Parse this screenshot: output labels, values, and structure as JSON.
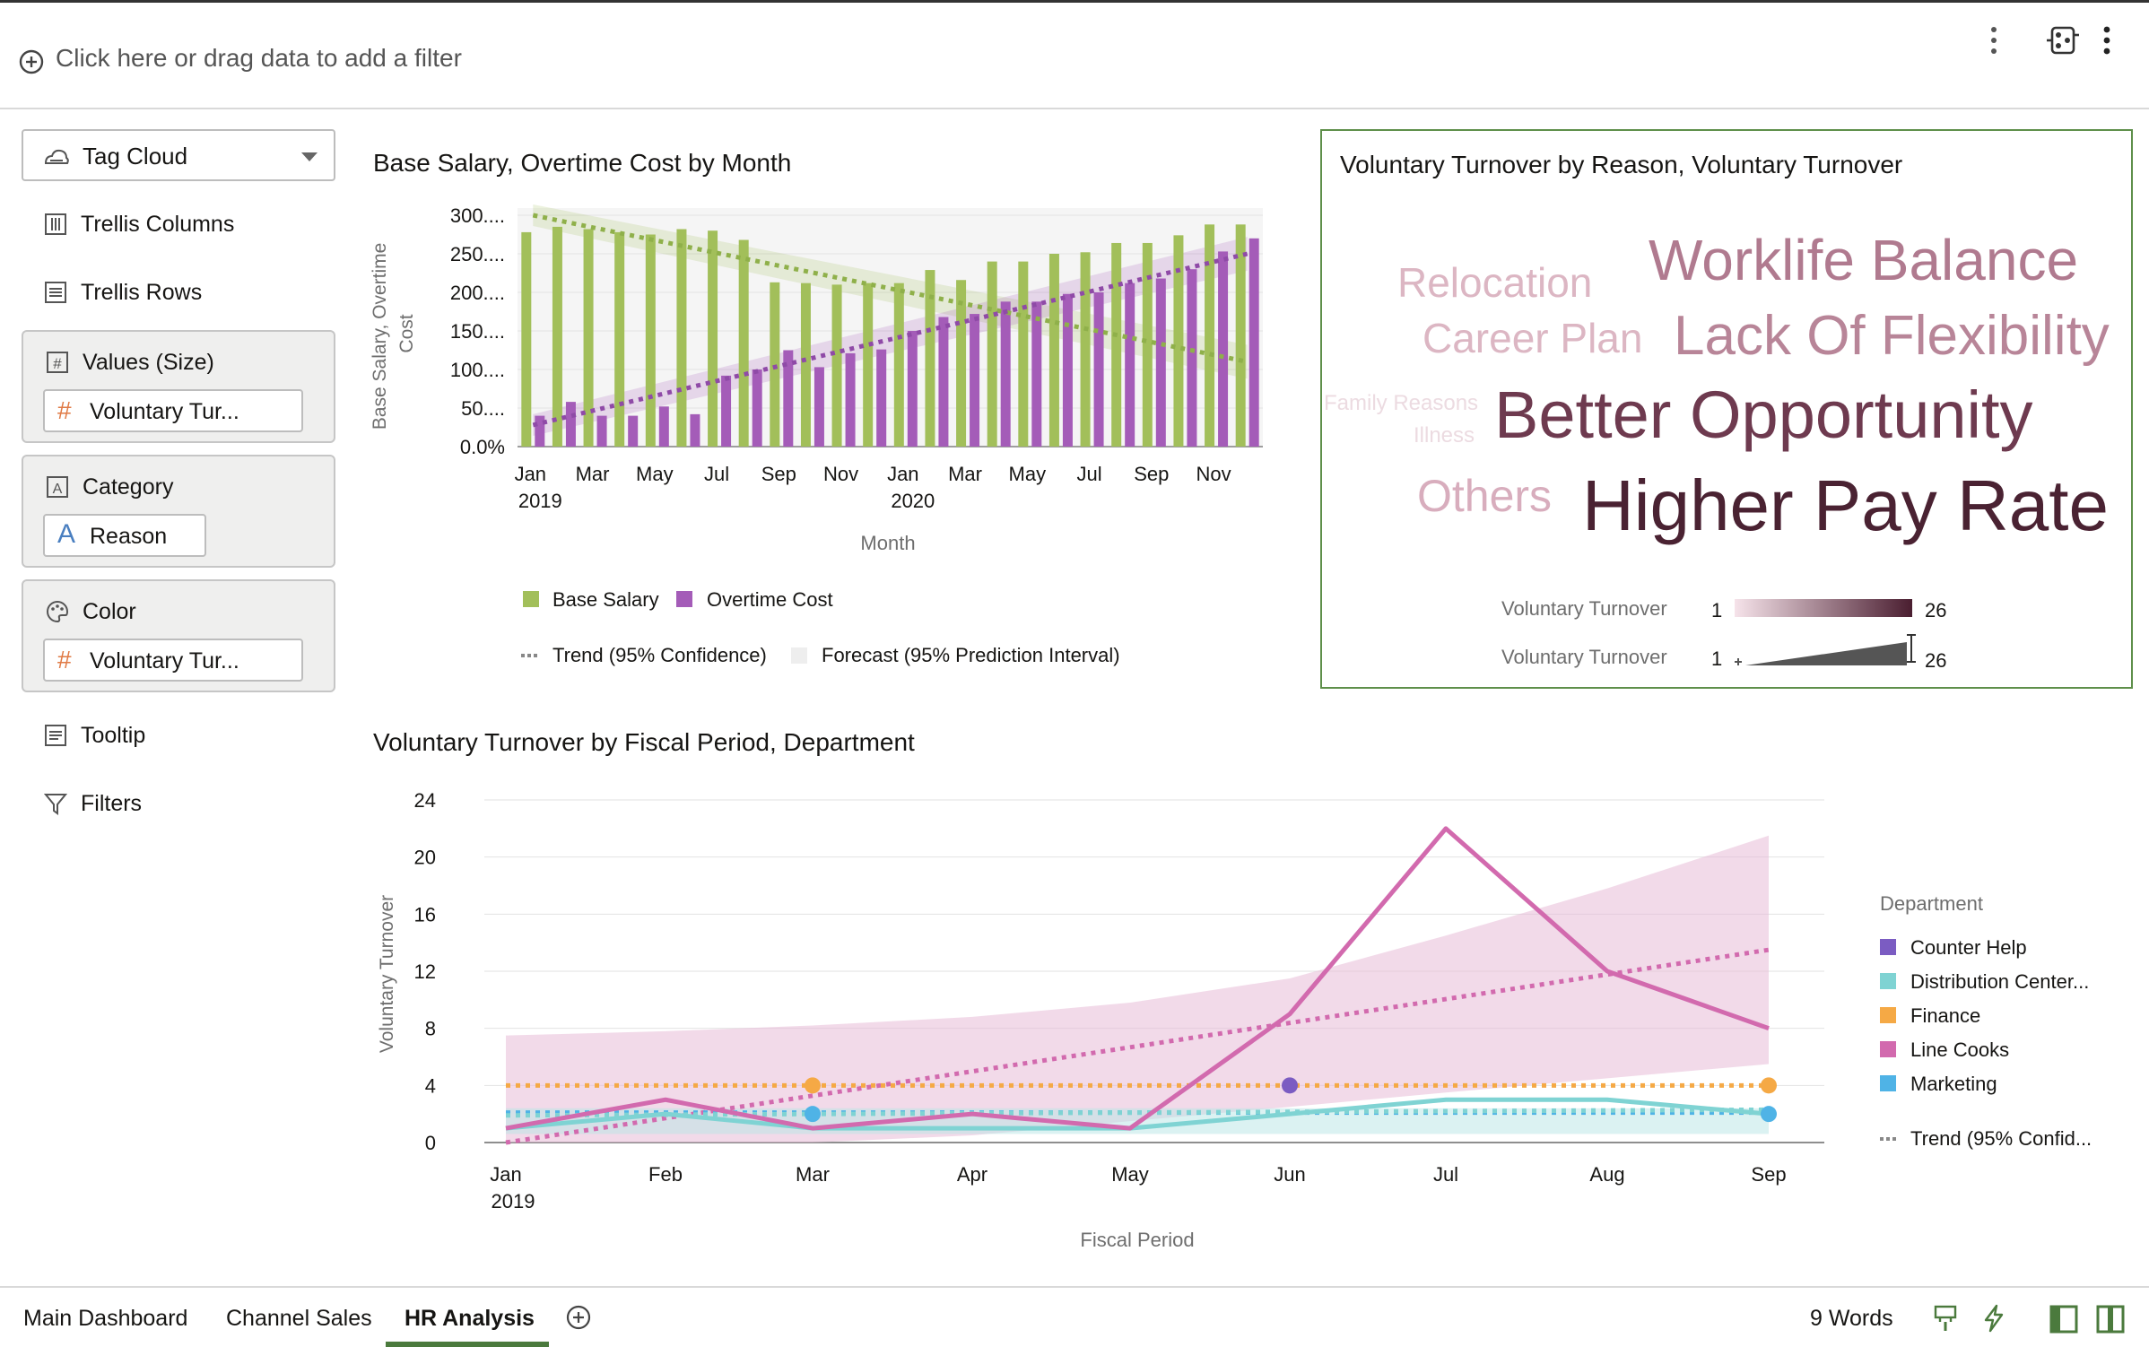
{
  "filter_bar": {
    "hint": "Click here or drag data to add a filter"
  },
  "left_panel": {
    "viz_type": "Tag Cloud",
    "trellis_columns": "Trellis Columns",
    "trellis_rows": "Trellis Rows",
    "values_label": "Values (Size)",
    "values_chip": "Voluntary Tur...",
    "category_label": "Category",
    "category_chip": "Reason",
    "color_label": "Color",
    "color_chip": "Voluntary Tur...",
    "tooltip": "Tooltip",
    "filters": "Filters"
  },
  "tag_cloud": {
    "title": "Voluntary Turnover by Reason, Voluntary Turnover",
    "words": [
      {
        "text": "Worklife Balance",
        "color": "#b07a8f"
      },
      {
        "text": "Relocation",
        "color": "#dcb6c3"
      },
      {
        "text": "Career Plan",
        "color": "#dcb6c3"
      },
      {
        "text": "Lack Of Flexibility",
        "color": "#b88598"
      },
      {
        "text": "Family Reasons",
        "color": "#ecdbe1"
      },
      {
        "text": "Illness",
        "color": "#ecdbe1"
      },
      {
        "text": "Better Opportunity",
        "color": "#6e3a4f"
      },
      {
        "text": "Others",
        "color": "#d8adbd"
      },
      {
        "text": "Higher Pay Rate",
        "color": "#4a2232"
      }
    ],
    "legend": {
      "color_label": "Voluntary Turnover",
      "color_min": "1",
      "color_max": "26",
      "size_label": "Voluntary Turnover",
      "size_min": "1",
      "size_max": "26"
    }
  },
  "bottom_tabs": [
    "Main Dashboard",
    "Channel Sales",
    "HR Analysis"
  ],
  "active_tab": "HR Analysis",
  "status": {
    "word_count": "9 Words"
  },
  "chart_data": [
    {
      "type": "bar",
      "title": "Base Salary, Overtime Cost by Month",
      "xlabel": "Month",
      "ylabel": "Base Salary, Overtime Cost",
      "x_tick_labels": [
        "Jan",
        "Mar",
        "May",
        "Jul",
        "Sep",
        "Nov",
        "Jan",
        "Mar",
        "May",
        "Jul",
        "Sep",
        "Nov"
      ],
      "x_tick_years": [
        "2019",
        "2020"
      ],
      "y_tick_labels": [
        "0.0%",
        "50....",
        "100....",
        "150....",
        "200....",
        "250....",
        "300...."
      ],
      "ylim": [
        0,
        300
      ],
      "categories": [
        "Jan 2019",
        "Feb 2019",
        "Mar 2019",
        "Apr 2019",
        "May 2019",
        "Jun 2019",
        "Jul 2019",
        "Aug 2019",
        "Sep 2019",
        "Oct 2019",
        "Nov 2019",
        "Dec 2019",
        "Jan 2020",
        "Feb 2020",
        "Mar 2020",
        "Apr 2020",
        "May 2020",
        "Jun 2020",
        "Jul 2020",
        "Aug 2020",
        "Sep 2020",
        "Oct 2020",
        "Nov 2020",
        "Dec 2020"
      ],
      "series": [
        {
          "name": "Base Salary",
          "color": "#a2bf5a",
          "values": [
            278,
            285,
            282,
            278,
            275,
            282,
            280,
            268,
            213,
            212,
            210,
            212,
            212,
            229,
            216,
            240,
            240,
            250,
            252,
            264,
            264,
            274,
            288,
            288
          ]
        },
        {
          "name": "Overtime Cost",
          "color": "#a45cb8",
          "values": [
            40,
            58,
            40,
            40,
            52,
            42,
            92,
            100,
            125,
            103,
            121,
            126,
            150,
            168,
            172,
            188,
            188,
            198,
            200,
            212,
            218,
            230,
            253,
            270
          ]
        }
      ],
      "legend": [
        "Base Salary",
        "Overtime Cost",
        "Trend (95% Confidence)",
        "Forecast (95% Prediction Interval)"
      ],
      "trend_lines": [
        {
          "series": "Base Salary",
          "start": 300,
          "end": 110
        },
        {
          "series": "Overtime Cost",
          "start": 28,
          "end": 250
        }
      ]
    },
    {
      "type": "line",
      "title": "Voluntary Turnover by Fiscal Period, Department",
      "xlabel": "Fiscal Period",
      "ylabel": "Voluntary Turnover",
      "categories": [
        "Jan",
        "Feb",
        "Mar",
        "Apr",
        "May",
        "Jun",
        "Jul",
        "Aug",
        "Sep"
      ],
      "x_tick_year": "2019",
      "y_ticks": [
        0,
        4,
        8,
        12,
        16,
        20,
        24
      ],
      "ylim": [
        0,
        24
      ],
      "legend_title": "Department",
      "series": [
        {
          "name": "Counter Help",
          "color": "#7b5cc2",
          "values": [
            null,
            null,
            null,
            null,
            null,
            4,
            null,
            null,
            null
          ]
        },
        {
          "name": "Distribution Center...",
          "color": "#7fd3d3",
          "values": [
            1,
            2,
            1,
            1,
            1,
            2,
            3,
            3,
            2
          ]
        },
        {
          "name": "Finance",
          "color": "#f5a945",
          "values": [
            null,
            null,
            4,
            null,
            null,
            null,
            null,
            null,
            4
          ]
        },
        {
          "name": "Line Cooks",
          "color": "#d26aae",
          "values": [
            1,
            3,
            1,
            2,
            1,
            9,
            22,
            12,
            8
          ]
        },
        {
          "name": "Marketing",
          "color": "#4fb3e6",
          "values": [
            null,
            null,
            2,
            null,
            null,
            null,
            null,
            null,
            2
          ]
        }
      ],
      "trend_label": "Trend (95% Confid...",
      "forecast_band": {
        "upper": [
          7.5,
          7.8,
          8.2,
          8.8,
          9.8,
          11.5,
          14.5,
          17.8,
          21.5
        ],
        "lower": [
          0,
          0,
          0,
          0.5,
          1.5,
          2.5,
          3.5,
          4.5,
          5.5
        ]
      }
    }
  ]
}
